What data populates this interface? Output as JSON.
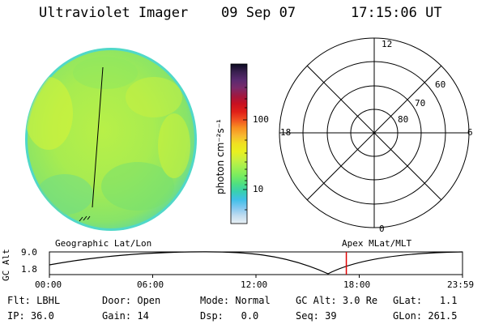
{
  "header": {
    "title": "Ultraviolet Imager",
    "date": "09 Sep 07",
    "time": "17:15:06 UT"
  },
  "colorbar": {
    "label": "photon cm⁻²s⁻¹",
    "ticks": [
      "100",
      "10"
    ],
    "colors": [
      "#0a0a20",
      "#3a2050",
      "#5a2a70",
      "#7a2a6a",
      "#a01840",
      "#c81020",
      "#e02018",
      "#f05020",
      "#f89020",
      "#f8b830",
      "#f0e020",
      "#e8f020",
      "#c8f040",
      "#a0f050",
      "#78ec60",
      "#50e080",
      "#38d0b0",
      "#40c0e8",
      "#80c8f0",
      "#c0dcf0",
      "#e8f0f4"
    ]
  },
  "polar": {
    "labels_top": "12",
    "labels_bottom": "0",
    "labels_left": "18",
    "labels_right": "6",
    "lat_labels": [
      "60",
      "70",
      "80"
    ]
  },
  "timeline": {
    "ylabel": "GC Alt",
    "y_values": [
      "9.0",
      "1.8"
    ],
    "left_title": "Geographic Lat/Lon",
    "right_title": "Apex MLat/MLT",
    "x_ticks": [
      "00:00",
      "06:00",
      "12:00",
      "18:00",
      "23:59"
    ],
    "marker_time_hours": 17.25,
    "marker_color": "#e00000"
  },
  "footer": {
    "row1": [
      {
        "label": "Flt:",
        "value": "LBHL"
      },
      {
        "label": "Door:",
        "value": "Open"
      },
      {
        "label": "Mode:",
        "value": "Normal"
      },
      {
        "label": "GC Alt:",
        "value": "3.0 Re"
      },
      {
        "label": "GLat:",
        "value": "1.1"
      }
    ],
    "row2": [
      {
        "label": "IP:",
        "value": "36.0"
      },
      {
        "label": "Gain:",
        "value": "14"
      },
      {
        "label": "Dsp:",
        "value": "0.0"
      },
      {
        "label": "Seq:",
        "value": "39"
      },
      {
        "label": "GLon:",
        "value": "261.5"
      }
    ]
  }
}
